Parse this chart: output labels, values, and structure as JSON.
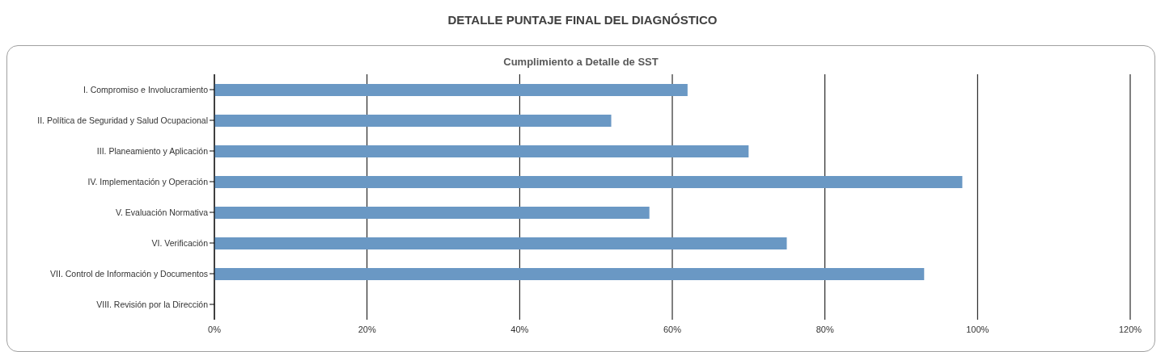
{
  "chart_data": {
    "type": "bar",
    "orientation": "horizontal",
    "title": "DETALLE PUNTAJE FINAL DEL DIAGNÓSTICO",
    "subtitle": "Cumplimiento a Detalle de SST",
    "categories": [
      "I. Compromiso e Involucramiento",
      "II. Política de Seguridad y Salud Ocupacional",
      "III. Planeamiento y Aplicación",
      "IV. Implementación y Operación",
      "V. Evaluación Normativa",
      "VI. Verificación",
      "VII. Control de Información y Documentos",
      "VIII. Revisión por la Dirección"
    ],
    "values": [
      62,
      52,
      70,
      98,
      57,
      75,
      93,
      0
    ],
    "color": "#6a98c4",
    "xlim": [
      0,
      120
    ],
    "xticks": [
      {
        "value": 0,
        "label": "0%"
      },
      {
        "value": 20,
        "label": "20%"
      },
      {
        "value": 40,
        "label": "40%"
      },
      {
        "value": 60,
        "label": "60%"
      },
      {
        "value": 80,
        "label": "80%"
      },
      {
        "value": 100,
        "label": "100%"
      },
      {
        "value": 120,
        "label": "120%"
      }
    ],
    "grid": "x",
    "legend": false
  }
}
